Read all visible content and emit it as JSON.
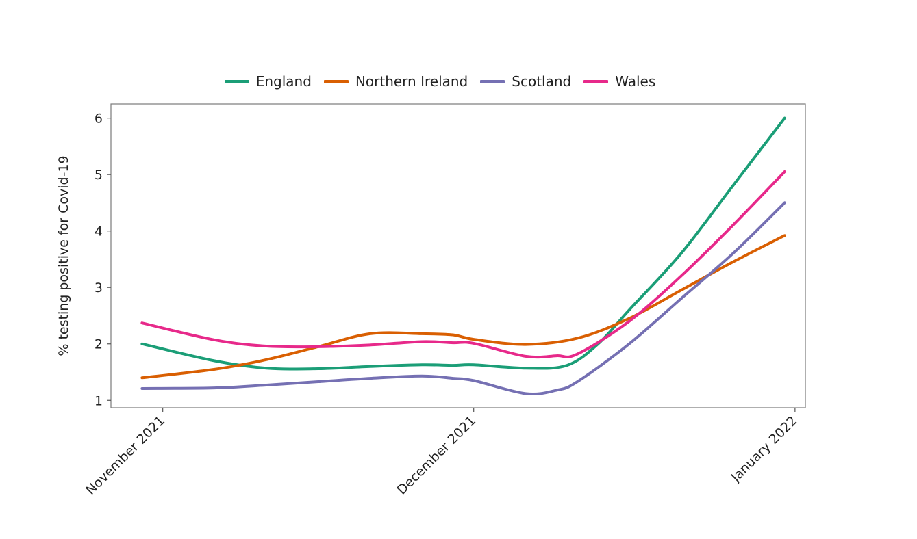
{
  "chart_data": {
    "type": "line",
    "title": "",
    "xlabel": "",
    "ylabel": "% testing positive for Covid-19",
    "x_ticks": [
      "November 2021",
      "December 2021",
      "January 2022"
    ],
    "x_tick_days": [
      0,
      30,
      61
    ],
    "xlim": [
      -5,
      62
    ],
    "ylim": [
      0.87,
      6.25
    ],
    "y_ticks": [
      1,
      2,
      3,
      4,
      5,
      6
    ],
    "grid": false,
    "legend_position": "top",
    "series": [
      {
        "name": "England",
        "color": "#1b9e77",
        "x": [
          -2,
          5,
          10,
          15,
          20,
          25,
          28,
          30,
          35,
          39,
          42,
          45,
          50,
          55,
          60
        ],
        "y": [
          2.0,
          1.7,
          1.57,
          1.56,
          1.6,
          1.63,
          1.62,
          1.63,
          1.57,
          1.62,
          2.0,
          2.6,
          3.6,
          4.8,
          6.0
        ]
      },
      {
        "name": "Northern Ireland",
        "color": "#d95f02",
        "x": [
          -2,
          5,
          10,
          15,
          20,
          25,
          28,
          30,
          35,
          40,
          45,
          50,
          55,
          60
        ],
        "y": [
          1.4,
          1.55,
          1.72,
          1.95,
          2.18,
          2.18,
          2.16,
          2.08,
          1.99,
          2.1,
          2.45,
          2.95,
          3.45,
          3.92
        ]
      },
      {
        "name": "Scotland",
        "color": "#7570b3",
        "x": [
          -2,
          5,
          10,
          15,
          20,
          25,
          28,
          30,
          35,
          38,
          40,
          45,
          50,
          55,
          60
        ],
        "y": [
          1.21,
          1.22,
          1.27,
          1.33,
          1.39,
          1.43,
          1.39,
          1.35,
          1.12,
          1.18,
          1.33,
          2.0,
          2.8,
          3.6,
          4.5
        ]
      },
      {
        "name": "Wales",
        "color": "#e7298a",
        "x": [
          -2,
          5,
          10,
          15,
          20,
          25,
          28,
          30,
          35,
          38,
          40,
          45,
          50,
          55,
          60
        ],
        "y": [
          2.37,
          2.07,
          1.96,
          1.95,
          1.98,
          2.04,
          2.02,
          2.01,
          1.78,
          1.79,
          1.82,
          2.4,
          3.2,
          4.1,
          5.05
        ]
      }
    ]
  }
}
